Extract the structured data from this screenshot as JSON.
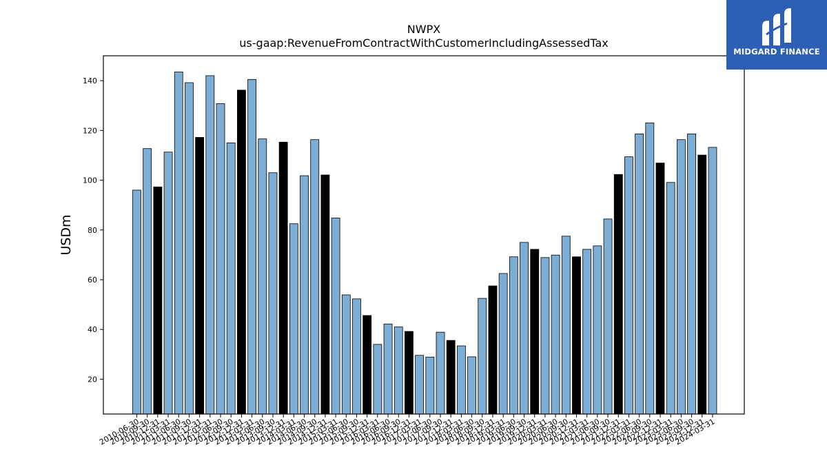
{
  "chart_data": {
    "type": "bar",
    "title": "NWPX",
    "subtitle": "us-gaap:RevenueFromContractWithCustomerIncludingAssessedTax",
    "xlabel": "",
    "ylabel": "USDm",
    "ylim": [
      6,
      150
    ],
    "yticks": [
      20,
      40,
      60,
      80,
      100,
      120,
      140
    ],
    "grid": false,
    "colors": {
      "quarter": "#7eadd4",
      "fiscal_year_end": "#000000",
      "edge": "#000000"
    },
    "categories": [
      "2010-06-30",
      "2010-09-30",
      "2010-12-31",
      "2011-03-31",
      "2011-06-30",
      "2011-09-30",
      "2011-12-31",
      "2012-03-31",
      "2012-06-30",
      "2012-09-30",
      "2012-12-31",
      "2013-03-31",
      "2013-06-30",
      "2013-09-30",
      "2013-12-31",
      "2014-03-31",
      "2014-06-30",
      "2014-09-30",
      "2014-12-31",
      "2015-03-31",
      "2015-06-30",
      "2015-09-30",
      "2015-12-31",
      "2016-03-31",
      "2016-06-30",
      "2016-09-30",
      "2016-12-31",
      "2017-03-31",
      "2017-06-30",
      "2017-09-30",
      "2017-12-31",
      "2018-03-31",
      "2018-06-30",
      "2018-09-30",
      "2018-12-31",
      "2019-03-31",
      "2019-06-30",
      "2019-09-30",
      "2019-12-31",
      "2020-03-31",
      "2020-06-30",
      "2020-09-30",
      "2020-12-31",
      "2021-03-31",
      "2021-06-30",
      "2021-09-30",
      "2021-12-31",
      "2022-03-31",
      "2022-06-30",
      "2022-09-30",
      "2022-12-31",
      "2023-03-31",
      "2023-06-30",
      "2023-09-30",
      "2023-12-31",
      "2024-03-31"
    ],
    "values": [
      96.0,
      112.7,
      97.3,
      111.3,
      143.5,
      139.2,
      117.2,
      142.0,
      130.8,
      115.0,
      136.2,
      140.5,
      116.6,
      103.0,
      115.3,
      82.5,
      101.8,
      116.3,
      102.1,
      84.8,
      53.9,
      52.3,
      45.6,
      34.0,
      42.2,
      41.0,
      39.2,
      29.6,
      28.9,
      38.9,
      35.6,
      33.4,
      29.0,
      52.5,
      57.5,
      62.5,
      69.2,
      75.0,
      72.2,
      68.9,
      69.9,
      77.5,
      69.2,
      72.2,
      73.6,
      84.4,
      102.3,
      109.4,
      118.6,
      123.0,
      106.9,
      99.1,
      116.3,
      118.6,
      110.1,
      113.2
    ],
    "fiscal_year_end_flags": [
      0,
      0,
      1,
      0,
      0,
      0,
      1,
      0,
      0,
      0,
      1,
      0,
      0,
      0,
      1,
      0,
      0,
      0,
      1,
      0,
      0,
      0,
      1,
      0,
      0,
      0,
      1,
      0,
      0,
      0,
      1,
      0,
      0,
      0,
      1,
      0,
      0,
      0,
      1,
      0,
      0,
      0,
      1,
      0,
      0,
      0,
      1,
      0,
      0,
      0,
      1,
      0,
      0,
      0,
      1,
      0
    ]
  },
  "logo": {
    "text": "MIDGARD FINANCE",
    "background": "#2d5fb5"
  }
}
